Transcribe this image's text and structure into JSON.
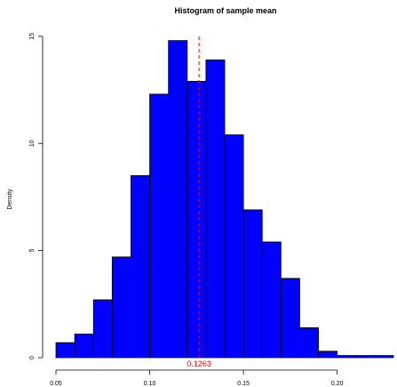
{
  "chart_data": {
    "type": "bar",
    "title": "Histogram of sample mean",
    "xlabel": "",
    "ylabel": "Density",
    "xlim": [
      0.05,
      0.23
    ],
    "ylim": [
      0,
      15.2
    ],
    "x_ticks": [
      0.05,
      0.1,
      0.15,
      0.2
    ],
    "x_tick_labels": [
      "0.05",
      "0.10",
      "0.15",
      "0.20"
    ],
    "y_ticks": [
      0,
      5,
      10,
      15
    ],
    "y_tick_labels": [
      "0",
      "5",
      "10",
      "15"
    ],
    "bin_width": 0.01,
    "bins": [
      {
        "x0": 0.05,
        "x1": 0.06,
        "value": 0.7
      },
      {
        "x0": 0.06,
        "x1": 0.07,
        "value": 1.1
      },
      {
        "x0": 0.07,
        "x1": 0.08,
        "value": 2.7
      },
      {
        "x0": 0.08,
        "x1": 0.09,
        "value": 4.7
      },
      {
        "x0": 0.09,
        "x1": 0.1,
        "value": 8.5
      },
      {
        "x0": 0.1,
        "x1": 0.11,
        "value": 12.3
      },
      {
        "x0": 0.11,
        "x1": 0.12,
        "value": 14.8
      },
      {
        "x0": 0.12,
        "x1": 0.13,
        "value": 12.9
      },
      {
        "x0": 0.13,
        "x1": 0.14,
        "value": 13.9
      },
      {
        "x0": 0.14,
        "x1": 0.15,
        "value": 10.4
      },
      {
        "x0": 0.15,
        "x1": 0.16,
        "value": 6.9
      },
      {
        "x0": 0.16,
        "x1": 0.17,
        "value": 5.4
      },
      {
        "x0": 0.17,
        "x1": 0.18,
        "value": 3.7
      },
      {
        "x0": 0.18,
        "x1": 0.19,
        "value": 1.4
      },
      {
        "x0": 0.19,
        "x1": 0.2,
        "value": 0.3
      },
      {
        "x0": 0.2,
        "x1": 0.21,
        "value": 0.1
      },
      {
        "x0": 0.21,
        "x1": 0.22,
        "value": 0.1
      },
      {
        "x0": 0.22,
        "x1": 0.23,
        "value": 0.1
      }
    ],
    "mean_line": {
      "value": 0.1263,
      "label": "0.1263",
      "style": "dashed"
    },
    "grid": false,
    "colors": {
      "bar_fill": "#0000ff",
      "bar_stroke": "#000000",
      "mean_line": "#ff0000",
      "mean_label": "#ff0000"
    }
  }
}
